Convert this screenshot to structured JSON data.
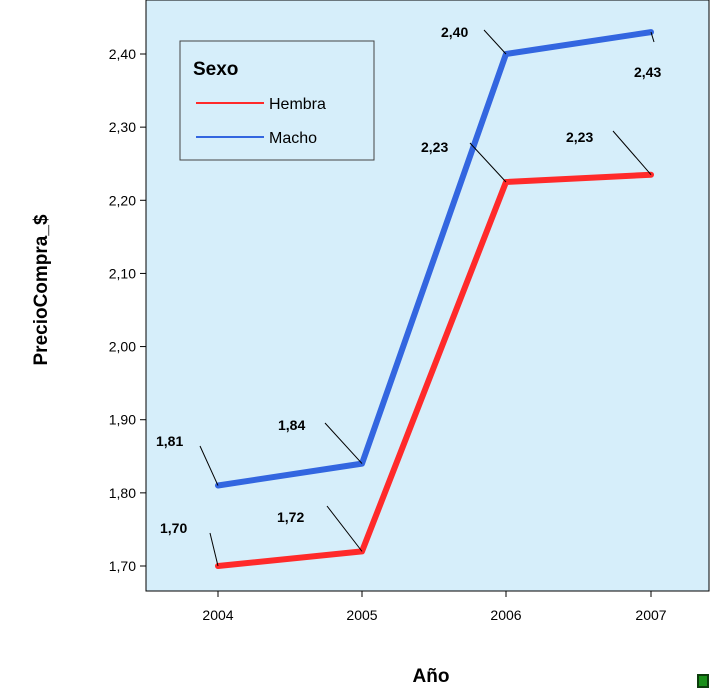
{
  "chart_data": {
    "type": "line",
    "xlabel": "Año",
    "ylabel": "PrecioCompra_$",
    "categories": [
      "2004",
      "2005",
      "2006",
      "2007"
    ],
    "ylim": [
      1.67,
      2.47
    ],
    "yticks": [
      1.7,
      1.8,
      1.9,
      2.0,
      2.1,
      2.2,
      2.3,
      2.4
    ],
    "ytick_labels": [
      "1,70",
      "1,80",
      "1,90",
      "2,00",
      "2,10",
      "2,20",
      "2,30",
      "2,40"
    ],
    "legend": {
      "title": "Sexo",
      "position": "top-left"
    },
    "series": [
      {
        "name": "Hembra",
        "color": "#ff2a2a",
        "values": [
          1.7,
          1.72,
          2.225,
          2.235
        ],
        "labels": [
          "1,70",
          "1,72",
          "2,23",
          "2,23"
        ]
      },
      {
        "name": "Macho",
        "color": "#3366e0",
        "values": [
          1.81,
          1.84,
          2.4,
          2.43
        ],
        "labels": [
          "1,81",
          "1,84",
          "2,40",
          "2,43"
        ]
      }
    ],
    "plot_background": "#d6eefa",
    "grid": false
  }
}
